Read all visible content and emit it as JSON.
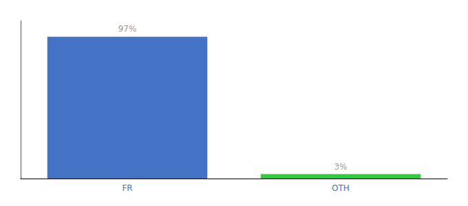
{
  "chart_data": {
    "type": "bar",
    "categories": [
      "FR",
      "OTH"
    ],
    "values": [
      97,
      3
    ],
    "value_labels": [
      "97%",
      "3%"
    ],
    "colors": [
      "#4472c4",
      "#2ecc40"
    ],
    "ylim": [
      0,
      108
    ],
    "yticks": [],
    "grid": false,
    "data_labels": true,
    "tick_labels": "x"
  }
}
